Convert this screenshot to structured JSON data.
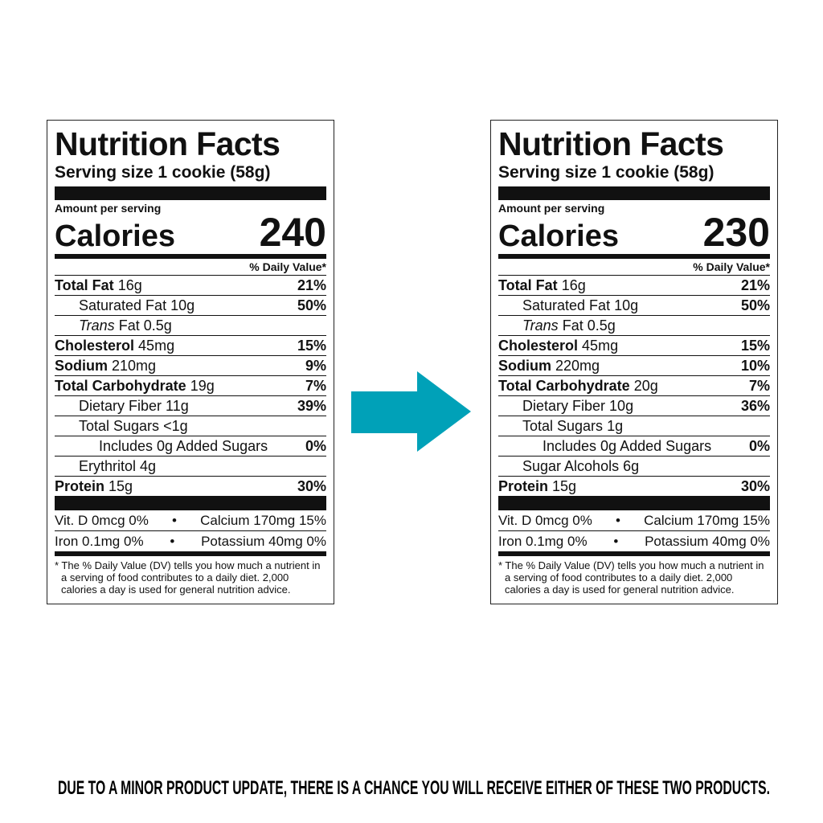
{
  "labels": [
    {
      "title": "Nutrition Facts",
      "serving": "Serving size 1 cookie (58g)",
      "amount_per_serving": "Amount per serving",
      "calories_label": "Calories",
      "calories": "240",
      "dv_header": "% Daily Value*",
      "rows": [
        {
          "name": "Total Fat",
          "amount": "16g",
          "dv": "21%"
        },
        {
          "name": "Saturated Fat",
          "amount": "10g",
          "dv": "50%"
        },
        {
          "name_italic": "Trans",
          "name": "Fat",
          "amount": "0.5g"
        },
        {
          "name": "Cholesterol",
          "amount": "45mg",
          "dv": "15%"
        },
        {
          "name": "Sodium",
          "amount": "210mg",
          "dv": "9%"
        },
        {
          "name": "Total Carbohydrate",
          "amount": "19g",
          "dv": "7%"
        },
        {
          "name": "Dietary Fiber",
          "amount": "11g",
          "dv": "39%"
        },
        {
          "name": "Total Sugars",
          "amount": "<1g"
        },
        {
          "name": "Includes 0g Added Sugars",
          "dv": "0%"
        },
        {
          "name": "Erythritol",
          "amount": "4g"
        },
        {
          "name": "Protein",
          "amount": "15g",
          "dv": "30%"
        }
      ],
      "micros": [
        [
          "Vit. D 0mcg 0%",
          "Calcium 170mg 15%"
        ],
        [
          "Iron 0.1mg 0%",
          "Potassium 40mg 0%"
        ]
      ],
      "footnote": "* The % Daily Value (DV) tells you how much a nutrient in a serving of food contributes to a daily diet. 2,000 calories a day is used for general nutrition advice."
    },
    {
      "title": "Nutrition Facts",
      "serving": "Serving size 1 cookie (58g)",
      "amount_per_serving": "Amount per serving",
      "calories_label": "Calories",
      "calories": "230",
      "dv_header": "% Daily Value*",
      "rows": [
        {
          "name": "Total Fat",
          "amount": "16g",
          "dv": "21%"
        },
        {
          "name": "Saturated Fat",
          "amount": "10g",
          "dv": "50%"
        },
        {
          "name_italic": "Trans",
          "name": "Fat",
          "amount": "0.5g"
        },
        {
          "name": "Cholesterol",
          "amount": "45mg",
          "dv": "15%"
        },
        {
          "name": "Sodium",
          "amount": "220mg",
          "dv": "10%"
        },
        {
          "name": "Total Carbohydrate",
          "amount": "20g",
          "dv": "7%"
        },
        {
          "name": "Dietary Fiber",
          "amount": "10g",
          "dv": "36%"
        },
        {
          "name": "Total Sugars",
          "amount": "1g"
        },
        {
          "name": "Includes 0g Added Sugars",
          "dv": "0%"
        },
        {
          "name": "Sugar Alcohols",
          "amount": "6g"
        },
        {
          "name": "Protein",
          "amount": "15g",
          "dv": "30%"
        }
      ],
      "micros": [
        [
          "Vit. D 0mcg 0%",
          "Calcium 170mg 15%"
        ],
        [
          "Iron 0.1mg 0%",
          "Potassium 40mg 0%"
        ]
      ],
      "footnote": "* The % Daily Value (DV) tells you how much a nutrient in a serving of food contributes to a daily diet. 2,000 calories a day is used for general nutrition advice."
    }
  ],
  "notice": "DUE TO A MINOR PRODUCT UPDATE, THERE IS A CHANCE YOU WILL RECEIVE EITHER OF THESE TWO PRODUCTS."
}
